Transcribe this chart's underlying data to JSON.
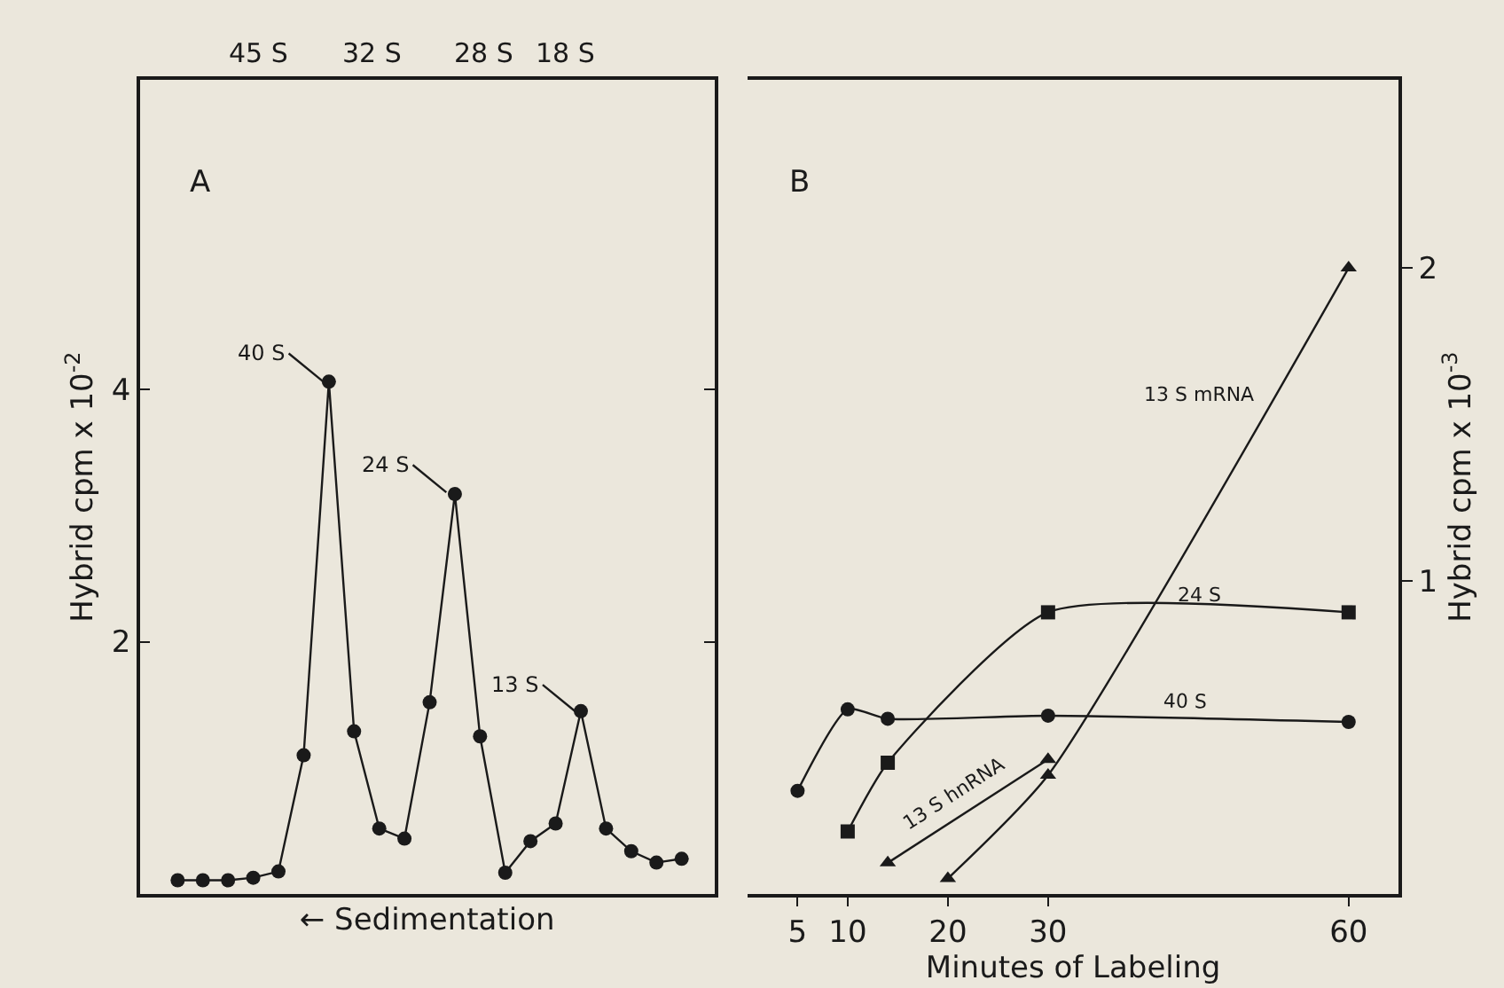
{
  "chart_data": [
    {
      "type": "line",
      "xlabel": "← Sedimentation",
      "ylabel": "Hybrid cpm x 10$^{-2}$",
      "categories": [
        null,
        null,
        null,
        null,
        null,
        null,
        null,
        null,
        null,
        null,
        null,
        null,
        null,
        null,
        null,
        null,
        null,
        null,
        null,
        null,
        null
      ],
      "values": [
        0.11,
        0.11,
        0.11,
        0.13,
        0.18,
        1.1,
        4.06,
        1.29,
        0.52,
        0.44,
        1.52,
        3.17,
        1.25,
        0.17,
        0.42,
        0.56,
        1.45,
        0.52,
        0.34,
        0.25,
        0.28
      ],
      "color": "#1a1a1a",
      "marker": "circle",
      "line_style": "solid",
      "ylim": [
        0,
        6.45
      ],
      "yticks": [
        2,
        4
      ],
      "grid": false,
      "legend": false,
      "annotations": [
        "A",
        "45 S",
        "32 S",
        "28 S",
        "18 S",
        "40 S",
        "24 S",
        "13 S"
      ]
    },
    {
      "type": "line",
      "xlabel": "Minutes of Labeling",
      "y2label": "Hybrid cpm x 10$^{-3}$",
      "xlim": [
        0,
        65
      ],
      "xticks": [
        5,
        10,
        20,
        30,
        60
      ],
      "y2lim": [
        0,
        2.6
      ],
      "y2ticks": [
        1,
        2
      ],
      "grid": false,
      "legend": false,
      "line_style": "solid",
      "annotations": [
        "B"
      ],
      "series": [
        {
          "name": "40 S",
          "color": "#1a1a1a",
          "marker": "circle",
          "axis": "y2",
          "x": [
            5,
            10,
            14,
            30,
            60
          ],
          "values": [
            0.33,
            0.59,
            0.56,
            0.57,
            0.55
          ]
        },
        {
          "name": "24 S",
          "color": "#1a1a1a",
          "marker": "square",
          "axis": "y2",
          "x": [
            10,
            14,
            30,
            60
          ],
          "values": [
            0.2,
            0.42,
            0.9,
            0.9
          ]
        },
        {
          "name": "13 S hnRNA",
          "color": "#1a1a1a",
          "marker": "triangle",
          "axis": "y2",
          "x": [
            14,
            30
          ],
          "values": [
            0.1,
            0.43
          ]
        },
        {
          "name": "13 S mRNA",
          "color": "#1a1a1a",
          "marker": "triangle",
          "axis": "y2",
          "x": [
            20,
            30,
            60
          ],
          "values": [
            0.05,
            0.38,
            2.0
          ]
        }
      ]
    }
  ]
}
